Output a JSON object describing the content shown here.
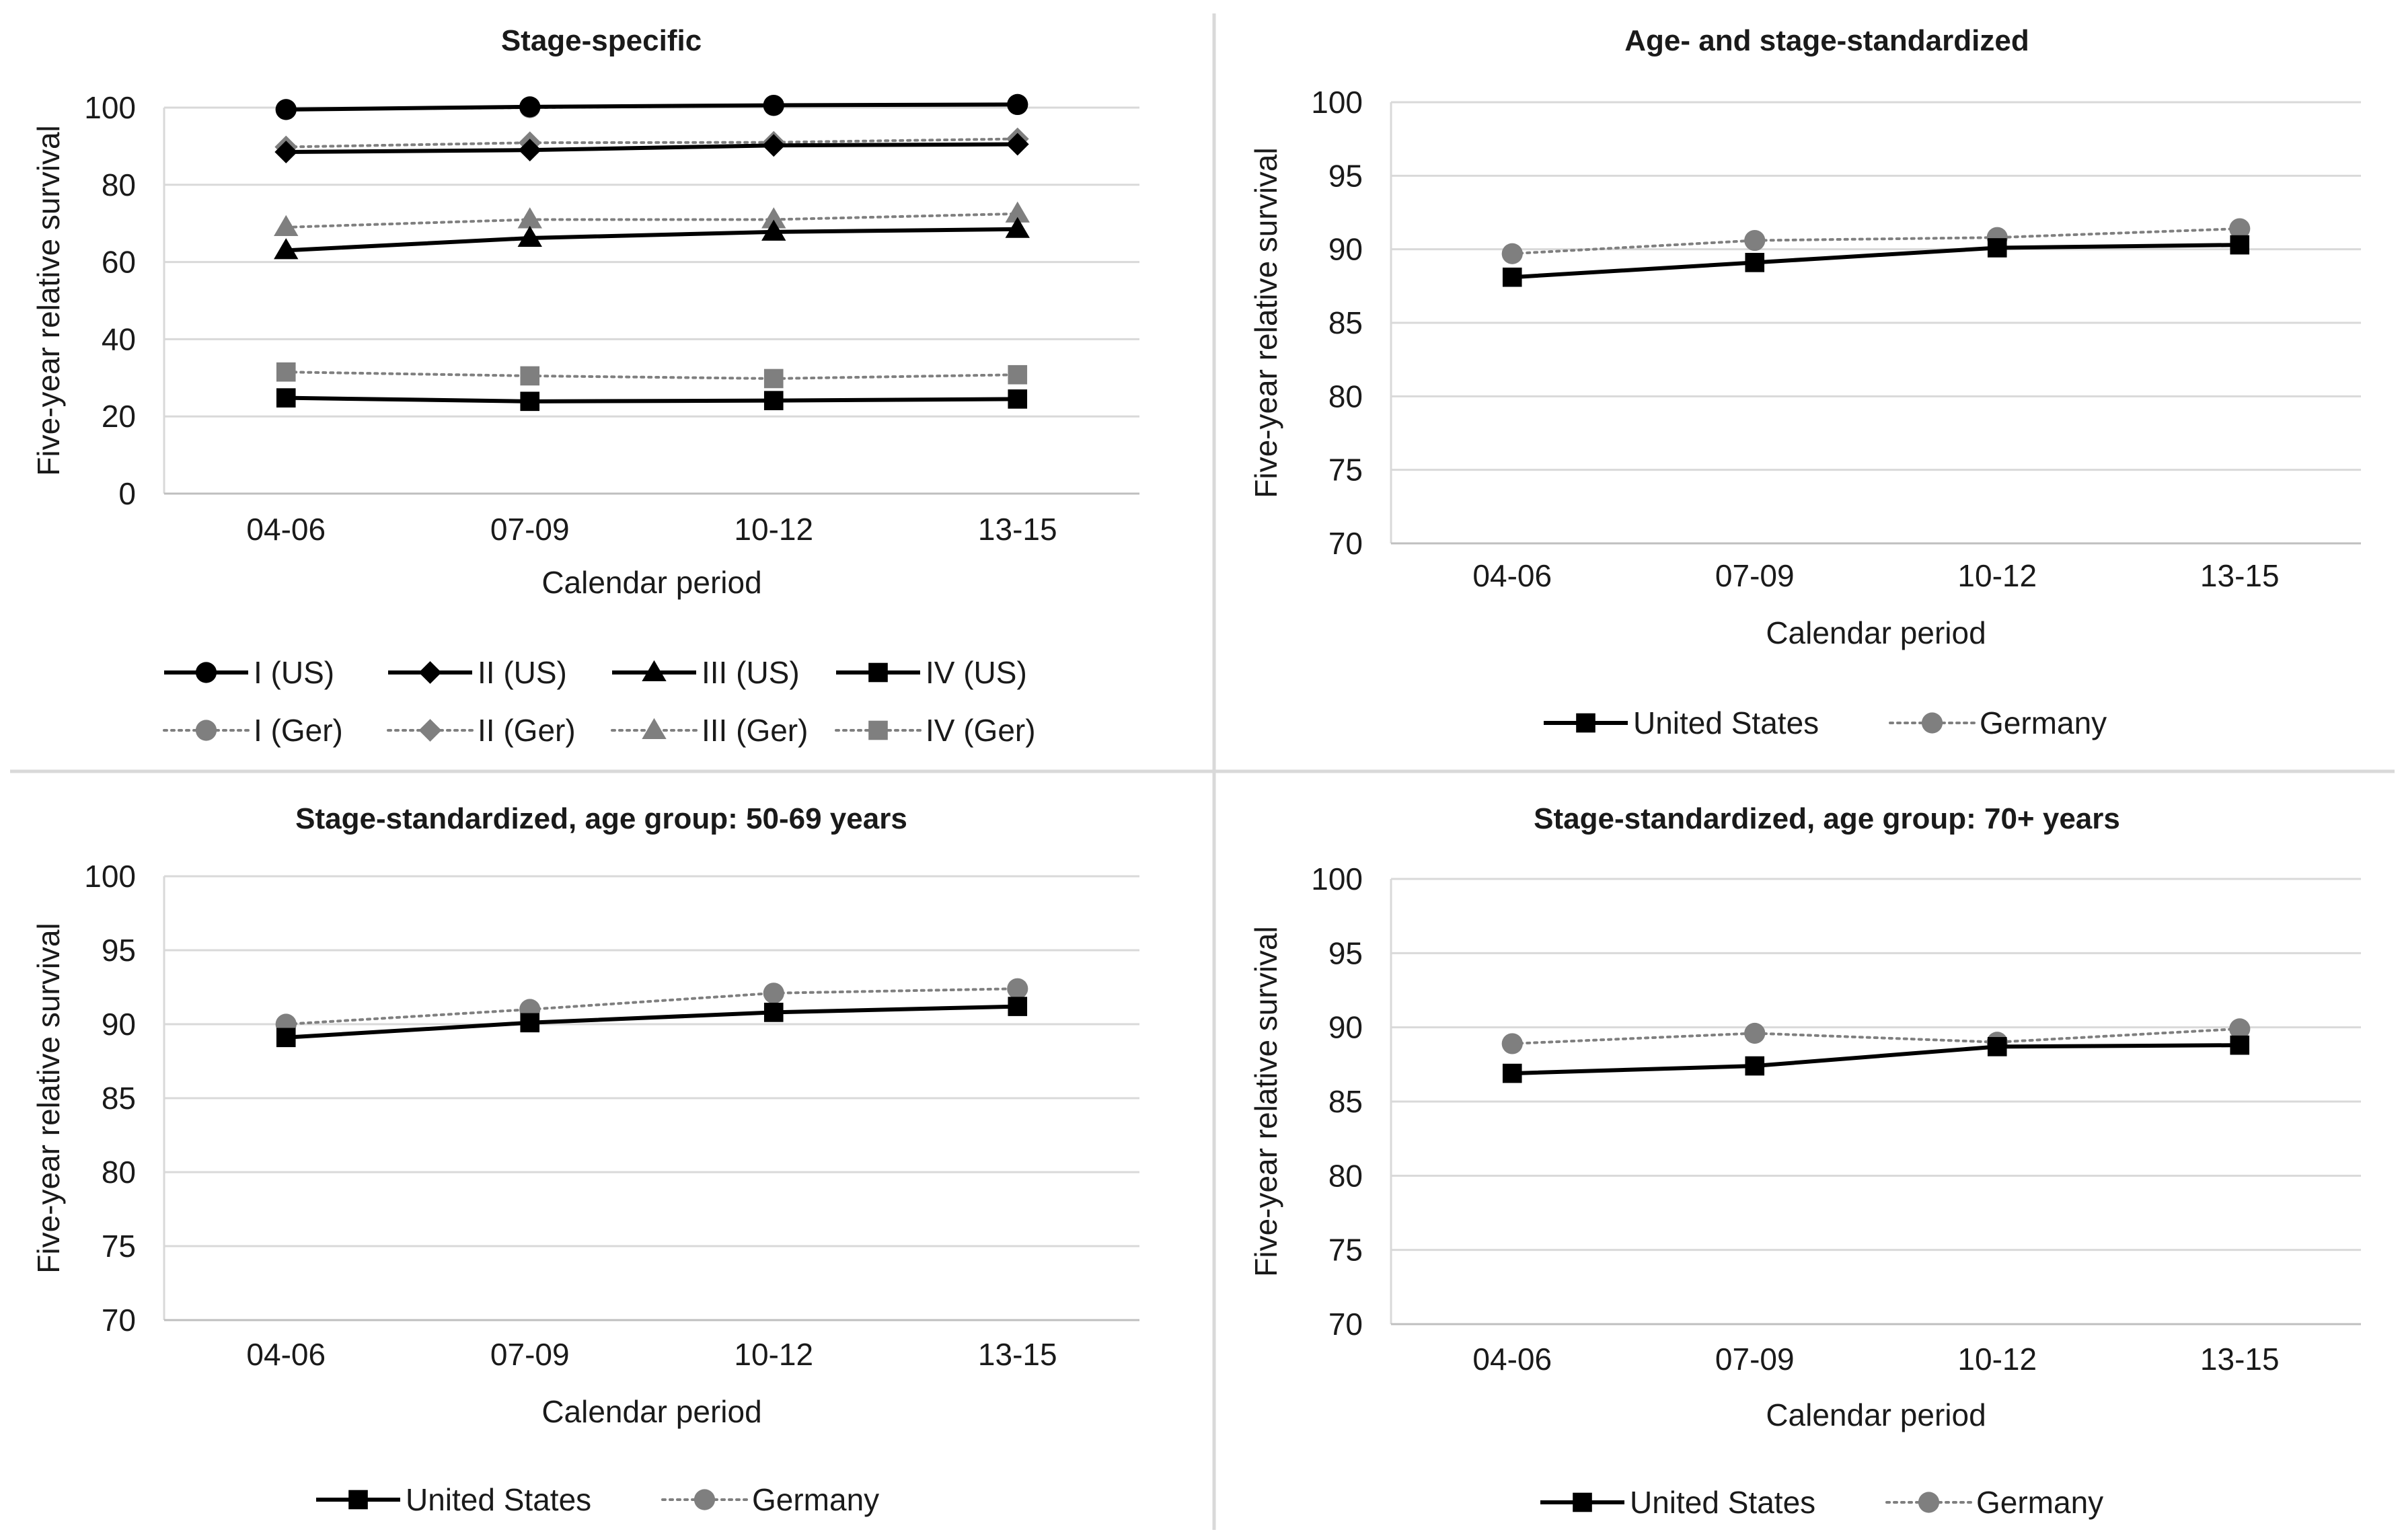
{
  "figure": {
    "panel_count": 4
  },
  "colors": {
    "us": "#000000",
    "ger": "#7f7f7f",
    "grid": "#d9d9d9",
    "divider": "#d9d9d9"
  },
  "chart_data": [
    {
      "type": "line",
      "title": "Stage-specific",
      "xlabel": "Calendar period",
      "ylabel": "Five-year relative survival",
      "categories": [
        "04-06",
        "07-09",
        "10-12",
        "13-15"
      ],
      "ylim": [
        0,
        100
      ],
      "yticks": [
        0,
        20,
        40,
        60,
        80,
        100
      ],
      "grid": true,
      "legend_position": "bottom",
      "series": [
        {
          "name": "I (US)",
          "values": [
            99.5,
            100.2,
            100.6,
            100.8
          ],
          "color": "#000000",
          "marker": "circle",
          "style": "solid"
        },
        {
          "name": "II (US)",
          "values": [
            88.5,
            89.0,
            90.2,
            90.5
          ],
          "color": "#000000",
          "marker": "diamond",
          "style": "solid"
        },
        {
          "name": "III (US)",
          "values": [
            63.0,
            66.2,
            67.8,
            68.5
          ],
          "color": "#000000",
          "marker": "triangle",
          "style": "solid"
        },
        {
          "name": "IV (US)",
          "values": [
            24.8,
            23.9,
            24.1,
            24.5
          ],
          "color": "#000000",
          "marker": "square",
          "style": "solid"
        },
        {
          "name": "I (Ger)",
          "values": [
            99.5,
            100.0,
            100.5,
            100.8
          ],
          "color": "#7f7f7f",
          "marker": "circle",
          "style": "dotted"
        },
        {
          "name": "II (Ger)",
          "values": [
            89.8,
            90.9,
            91.0,
            91.9
          ],
          "color": "#7f7f7f",
          "marker": "diamond",
          "style": "dotted"
        },
        {
          "name": "III (Ger)",
          "values": [
            69.0,
            71.0,
            71.0,
            72.5
          ],
          "color": "#7f7f7f",
          "marker": "triangle",
          "style": "dotted"
        },
        {
          "name": "IV (Ger)",
          "values": [
            31.5,
            30.5,
            29.8,
            30.8
          ],
          "color": "#7f7f7f",
          "marker": "square",
          "style": "dotted"
        }
      ]
    },
    {
      "type": "line",
      "title": "Age- and stage-standardized",
      "xlabel": "Calendar period",
      "ylabel": "Five-year relative survival",
      "categories": [
        "04-06",
        "07-09",
        "10-12",
        "13-15"
      ],
      "ylim": [
        70,
        100
      ],
      "yticks": [
        70,
        75,
        80,
        85,
        90,
        95,
        100
      ],
      "grid": true,
      "legend_position": "bottom",
      "series": [
        {
          "name": "United States",
          "values": [
            88.1,
            89.1,
            90.1,
            90.3
          ],
          "color": "#000000",
          "marker": "square",
          "style": "solid"
        },
        {
          "name": "Germany",
          "values": [
            89.7,
            90.6,
            90.8,
            91.4
          ],
          "color": "#7f7f7f",
          "marker": "circle",
          "style": "dotted"
        }
      ]
    },
    {
      "type": "line",
      "title": "Stage-standardized, age group: 50-69 years",
      "xlabel": "Calendar period",
      "ylabel": "Five-year relative survival",
      "categories": [
        "04-06",
        "07-09",
        "10-12",
        "13-15"
      ],
      "ylim": [
        70,
        100
      ],
      "yticks": [
        70,
        75,
        80,
        85,
        90,
        95,
        100
      ],
      "grid": true,
      "legend_position": "bottom",
      "series": [
        {
          "name": "United States",
          "values": [
            89.1,
            90.1,
            90.8,
            91.2
          ],
          "color": "#000000",
          "marker": "square",
          "style": "solid"
        },
        {
          "name": "Germany",
          "values": [
            90.0,
            91.0,
            92.1,
            92.4
          ],
          "color": "#7f7f7f",
          "marker": "circle",
          "style": "dotted"
        }
      ]
    },
    {
      "type": "line",
      "title": "Stage-standardized, age group: 70+ years",
      "xlabel": "Calendar period",
      "ylabel": "Five-year relative survival",
      "categories": [
        "04-06",
        "07-09",
        "10-12",
        "13-15"
      ],
      "ylim": [
        70,
        100
      ],
      "yticks": [
        70,
        75,
        80,
        85,
        90,
        95,
        100
      ],
      "grid": true,
      "legend_position": "bottom",
      "series": [
        {
          "name": "United States",
          "values": [
            86.9,
            87.4,
            88.7,
            88.8
          ],
          "color": "#000000",
          "marker": "square",
          "style": "solid"
        },
        {
          "name": "Germany",
          "values": [
            88.9,
            89.6,
            89.0,
            89.9
          ],
          "color": "#7f7f7f",
          "marker": "circle",
          "style": "dotted"
        }
      ]
    }
  ]
}
